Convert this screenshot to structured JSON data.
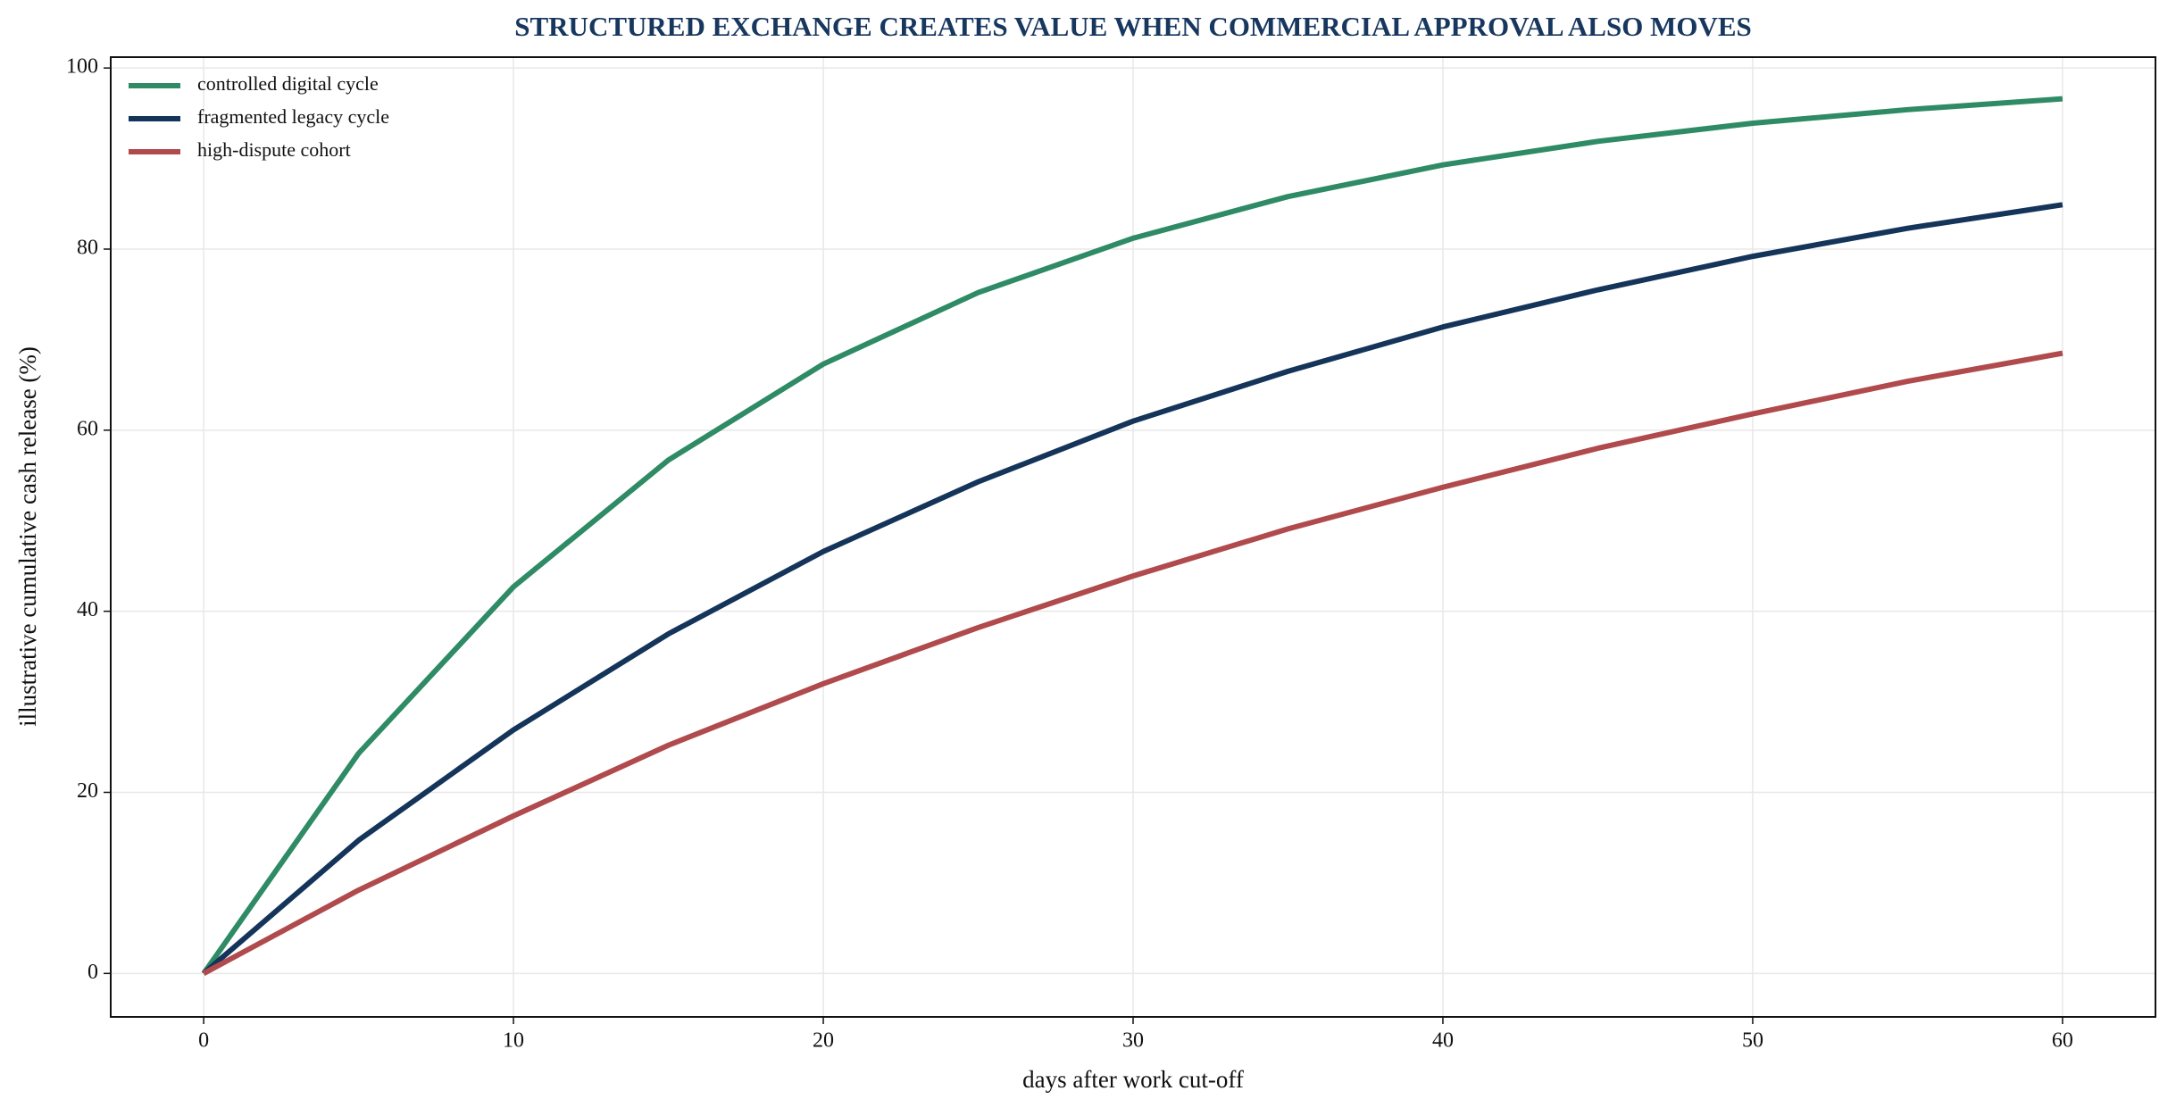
{
  "chart_data": {
    "type": "line",
    "title": "STRUCTURED EXCHANGE CREATES VALUE WHEN COMMERCIAL APPROVAL ALSO MOVES",
    "x_label": "days after work cut-off",
    "y_label": "illustrative cumulative cash release (%)",
    "x": [
      0,
      5,
      10,
      15,
      20,
      25,
      30,
      35,
      40,
      45,
      50,
      55,
      60
    ],
    "series": [
      {
        "name": "controlled digital cycle",
        "color": "#2e8b65",
        "values": [
          0,
          24.3,
          42.7,
          56.7,
          67.3,
          75.2,
          81.2,
          85.8,
          89.3,
          91.9,
          93.9,
          95.4,
          96.6
        ]
      },
      {
        "name": "fragmented legacy cycle",
        "color": "#14345a",
        "values": [
          0,
          14.7,
          26.9,
          37.5,
          46.6,
          54.3,
          61.0,
          66.5,
          71.4,
          75.5,
          79.2,
          82.3,
          84.9
        ]
      },
      {
        "name": "high-dispute cohort",
        "color": "#b04a4c",
        "values": [
          0,
          9.2,
          17.4,
          25.2,
          32.0,
          38.2,
          43.9,
          49.1,
          53.7,
          58.0,
          61.8,
          65.4,
          68.5
        ]
      }
    ],
    "xlim": [
      -3,
      63
    ],
    "ylim": [
      -4.8,
      101.2
    ],
    "xticks": [
      0,
      10,
      20,
      30,
      40,
      50,
      60
    ],
    "yticks": [
      0,
      20,
      40,
      60,
      80,
      100
    ],
    "grid": true,
    "legend": "upper left"
  }
}
